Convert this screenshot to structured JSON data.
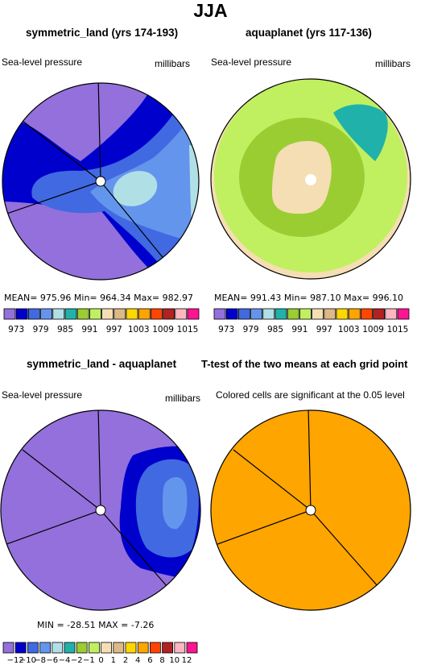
{
  "main_title": "JJA",
  "panels": [
    {
      "title": "symmetric_land (yrs 174-193)",
      "left_label": "Sea-level pressure",
      "right_label": "millibars",
      "stats": "MEAN= 975.96   Min= 964.34   Max= 982.97"
    },
    {
      "title": "aquaplanet (yrs 117-136)",
      "left_label": "Sea-level pressure",
      "right_label": "millibars",
      "stats": "MEAN= 991.43   Min= 987.10   Max= 996.10"
    },
    {
      "title": "symmetric_land - aquaplanet",
      "left_label": "Sea-level pressure",
      "right_label": "millibars",
      "stats": "MIN = -28.51  MAX =  -7.26"
    },
    {
      "title": "T-test of the two means at each grid point",
      "left_label": "Colored cells are significant at the 0.05 level"
    }
  ],
  "colors": {
    "slp_palette": [
      "#9370db",
      "#0000cd",
      "#4169e1",
      "#6495ed",
      "#b0e0e6",
      "#20b2aa",
      "#9acd32",
      "#c0f060",
      "#f5deb3",
      "#deb887",
      "#ffd700",
      "#ffa500",
      "#ff4500",
      "#b22222",
      "#ffb6c1",
      "#ff1493"
    ],
    "ttest_fill": "#ffa500"
  },
  "chart_data": [
    {
      "type": "heatmap",
      "projection": "polar stereographic",
      "variable": "Sea-level pressure",
      "units": "millibars",
      "stats": {
        "mean": 975.96,
        "min": 964.34,
        "max": 982.97
      },
      "levels": [
        973,
        976,
        979,
        982,
        985,
        988,
        991,
        994,
        997,
        1000,
        1003,
        1006,
        1009,
        1012,
        1015
      ],
      "colorbar_labels": [
        "973",
        "979",
        "985",
        "991",
        "997",
        "1003",
        "1009",
        "1015"
      ]
    },
    {
      "type": "heatmap",
      "projection": "polar stereographic",
      "variable": "Sea-level pressure",
      "units": "millibars",
      "stats": {
        "mean": 991.43,
        "min": 987.1,
        "max": 996.1
      },
      "levels": [
        973,
        976,
        979,
        982,
        985,
        988,
        991,
        994,
        997,
        1000,
        1003,
        1006,
        1009,
        1012,
        1015
      ],
      "colorbar_labels": [
        "973",
        "979",
        "985",
        "991",
        "997",
        "1003",
        "1009",
        "1015"
      ]
    },
    {
      "type": "heatmap",
      "projection": "polar stereographic",
      "variable": "Sea-level pressure difference",
      "units": "millibars",
      "stats": {
        "min": -28.51,
        "max": -7.26
      },
      "levels": [
        -12,
        -10,
        -8,
        -6,
        -4,
        -2,
        -1,
        0,
        1,
        2,
        4,
        6,
        8,
        10,
        12
      ],
      "colorbar_labels": [
        "-12",
        "-10",
        "-8",
        "-6",
        "-4",
        "-2",
        "-1",
        "0",
        "1",
        "2",
        "4",
        "6",
        "8",
        "10",
        "12"
      ]
    },
    {
      "type": "heatmap",
      "projection": "polar stereographic",
      "variable": "T-test significance",
      "significance_level": 0.05
    }
  ]
}
